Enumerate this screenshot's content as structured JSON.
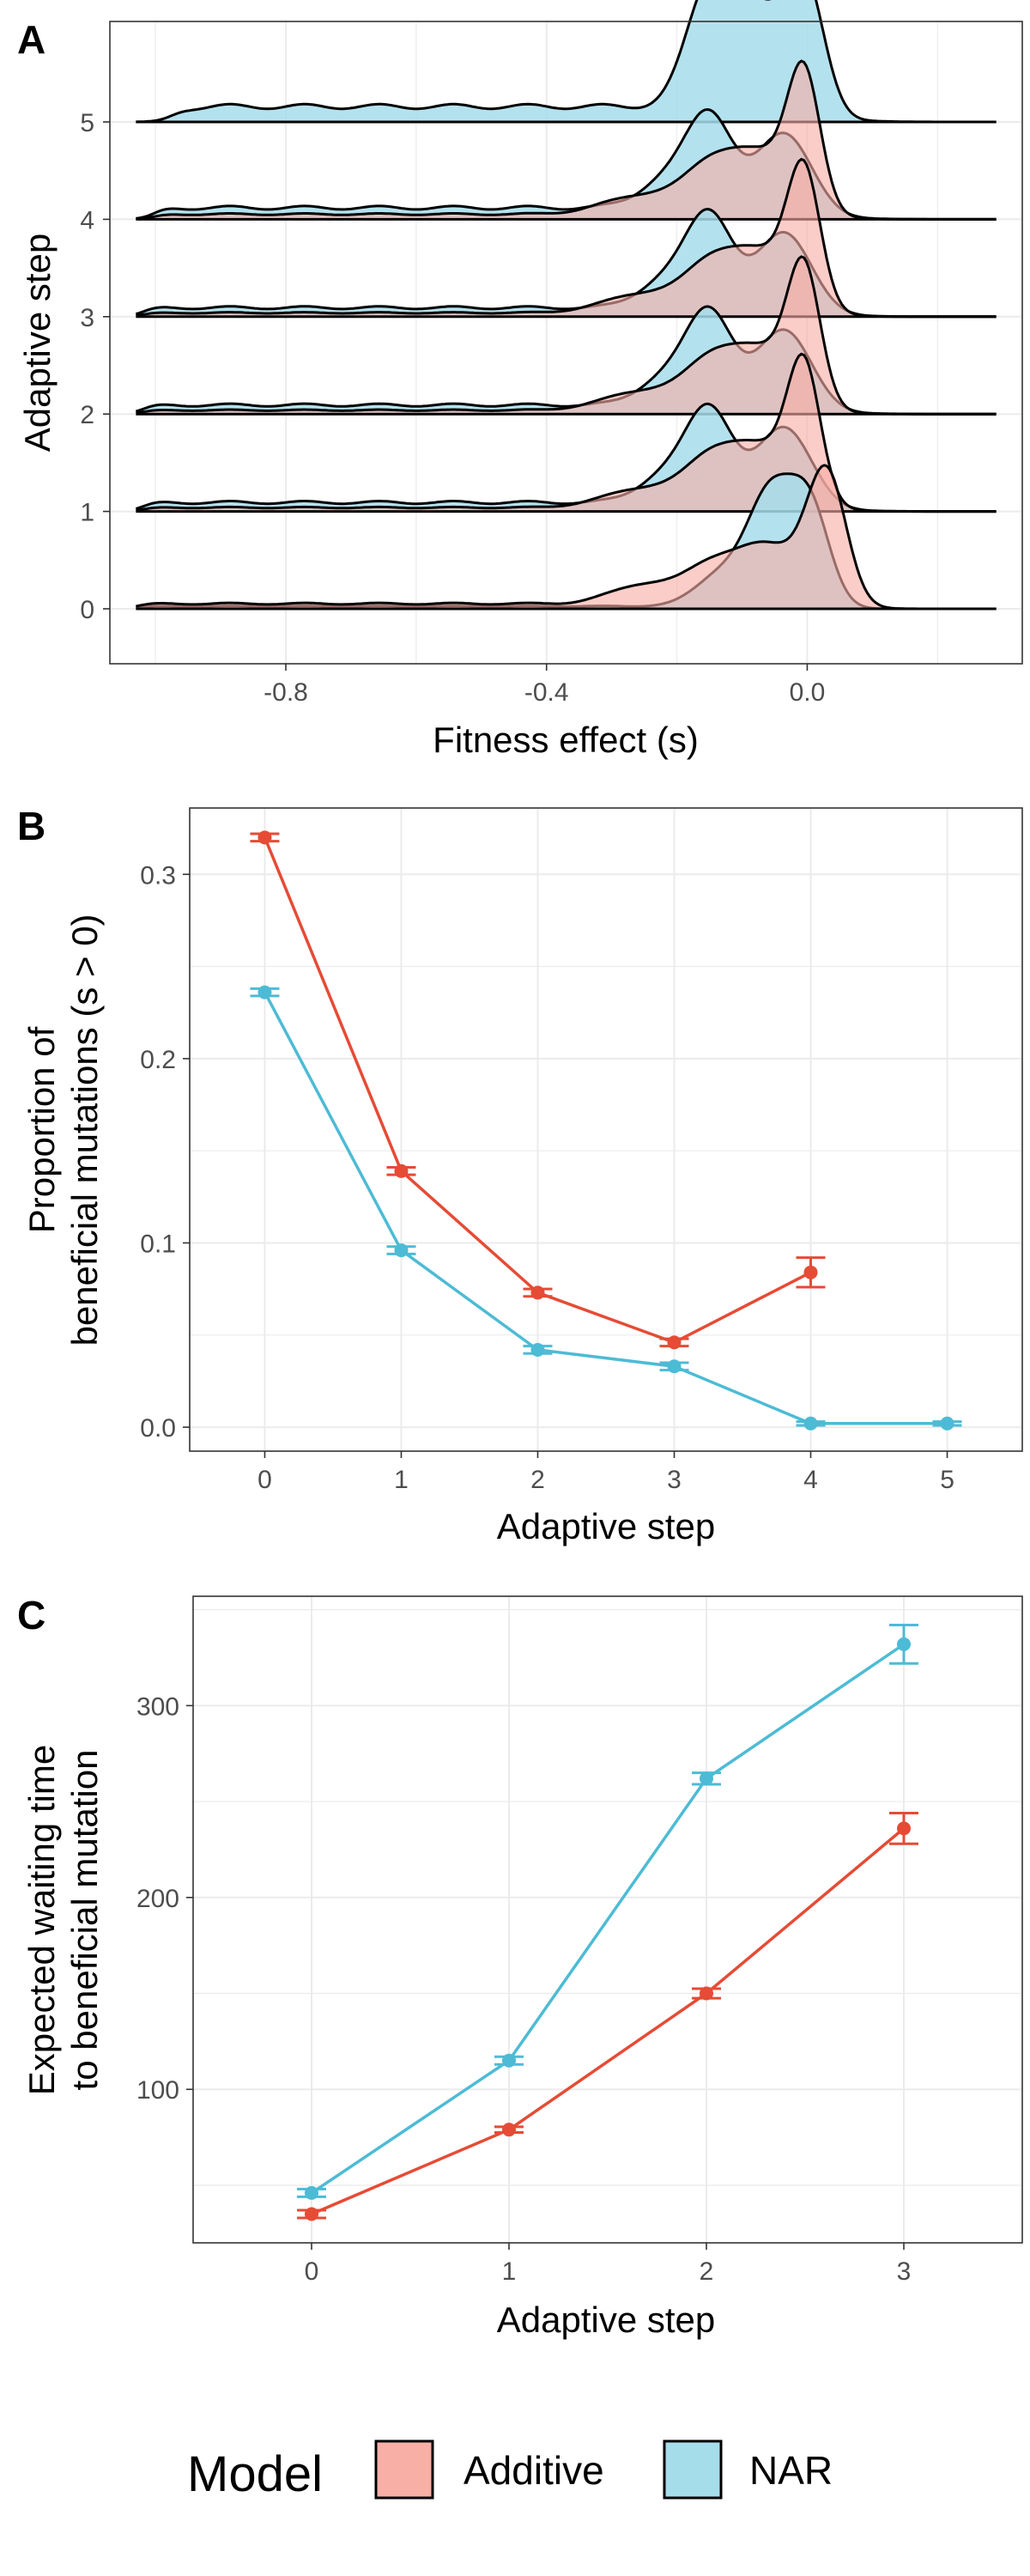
{
  "colors": {
    "additive": "#E64B35",
    "nar": "#4DBBD5",
    "additive_fill": "#F8AFA6",
    "nar_fill": "#A6DDEB",
    "overlap_fill": "#A3AFB1",
    "grid": "#EBEBEB",
    "border": "#333333"
  },
  "legend": {
    "title": "Model",
    "entries": [
      {
        "label": "Additive",
        "color": "#F8AFA6"
      },
      {
        "label": "NAR",
        "color": "#A6DDEB"
      }
    ]
  },
  "chart_data": [
    {
      "panel": "A",
      "type": "area",
      "subtype": "ridgeline density",
      "xlabel": "Fitness effect (s)",
      "ylabel": "Adaptive step",
      "x_ticks": [
        "-0.8",
        "-0.4",
        "0.0"
      ],
      "y_ticks": [
        "0",
        "1",
        "2",
        "3",
        "4",
        "5"
      ],
      "xlim": [
        -1.07,
        0.33
      ],
      "grid": true,
      "series": [
        {
          "name": "Additive",
          "ridges": {
            "0": {
              "peaks": [
                [
                  0.03,
                  1.0,
                  0.03
                ],
                [
                  -0.06,
                  0.45,
                  0.05
                ],
                [
                  -0.15,
                  0.25,
                  0.04
                ],
                [
                  -0.25,
                  0.15,
                  0.05
                ]
              ],
              "tail": 0.04,
              "tail_start": -1.03
            },
            "1": {
              "peaks": [
                [
                  -0.005,
                  1.0,
                  0.025
                ],
                [
                  -0.07,
                  0.45,
                  0.05
                ],
                [
                  -0.15,
                  0.3,
                  0.04
                ],
                [
                  -0.25,
                  0.15,
                  0.06
                ]
              ],
              "tail": 0.03,
              "tail_start": -1.02
            },
            "2": {
              "peaks": [
                [
                  -0.005,
                  1.0,
                  0.025
                ],
                [
                  -0.07,
                  0.45,
                  0.05
                ],
                [
                  -0.15,
                  0.3,
                  0.04
                ],
                [
                  -0.25,
                  0.15,
                  0.06
                ]
              ],
              "tail": 0.03,
              "tail_start": -1.02
            },
            "3": {
              "peaks": [
                [
                  -0.005,
                  1.0,
                  0.025
                ],
                [
                  -0.07,
                  0.45,
                  0.05
                ],
                [
                  -0.15,
                  0.3,
                  0.04
                ],
                [
                  -0.25,
                  0.15,
                  0.06
                ]
              ],
              "tail": 0.03,
              "tail_start": -1.02
            },
            "4": {
              "peaks": [
                [
                  -0.005,
                  1.0,
                  0.025
                ],
                [
                  -0.07,
                  0.45,
                  0.05
                ],
                [
                  -0.15,
                  0.3,
                  0.04
                ],
                [
                  -0.25,
                  0.15,
                  0.06
                ]
              ],
              "tail": 0.04,
              "tail_start": -1.0
            }
          }
        },
        {
          "name": "NAR",
          "ridges": {
            "0": {
              "peaks": [
                [
                  -0.055,
                  0.85,
                  0.035
                ],
                [
                  0.005,
                  0.72,
                  0.03
                ],
                [
                  -0.13,
                  0.25,
                  0.04
                ]
              ],
              "tail": 0.02,
              "tail_start": -1.03
            },
            "1": {
              "peaks": [
                [
                  -0.15,
                  0.72,
                  0.035
                ],
                [
                  -0.035,
                  0.6,
                  0.04
                ],
                [
                  -0.22,
                  0.2,
                  0.04
                ]
              ],
              "tail": 0.07,
              "tail_start": -1.02
            },
            "2": {
              "peaks": [
                [
                  -0.15,
                  0.72,
                  0.035
                ],
                [
                  -0.035,
                  0.6,
                  0.04
                ],
                [
                  -0.22,
                  0.2,
                  0.04
                ]
              ],
              "tail": 0.07,
              "tail_start": -1.02
            },
            "3": {
              "peaks": [
                [
                  -0.15,
                  0.72,
                  0.035
                ],
                [
                  -0.035,
                  0.6,
                  0.04
                ],
                [
                  -0.22,
                  0.2,
                  0.04
                ]
              ],
              "tail": 0.07,
              "tail_start": -1.02
            },
            "4": {
              "peaks": [
                [
                  -0.15,
                  0.72,
                  0.035
                ],
                [
                  -0.035,
                  0.6,
                  0.04
                ],
                [
                  -0.22,
                  0.2,
                  0.04
                ]
              ],
              "tail": 0.09,
              "tail_start": -1.0
            },
            "5": {
              "peaks": [
                [
                  -0.15,
                  0.9,
                  0.035
                ],
                [
                  -0.005,
                  1.0,
                  0.03
                ],
                [
                  -0.08,
                  0.7,
                  0.04
                ]
              ],
              "tail": 0.12,
              "tail_start": -0.97
            }
          }
        }
      ]
    },
    {
      "panel": "B",
      "type": "line",
      "xlabel": "Adaptive step",
      "ylabel": [
        "Proportion of",
        "beneficial mutations (s > 0)"
      ],
      "x_ticks": [
        "0",
        "1",
        "2",
        "3",
        "4",
        "5"
      ],
      "y_ticks": [
        "0.0",
        "0.1",
        "0.2",
        "0.3"
      ],
      "xlim": [
        -0.55,
        5.55
      ],
      "ylim": [
        -0.013,
        0.336
      ],
      "grid": true,
      "series": [
        {
          "name": "Additive",
          "x": [
            0,
            1,
            2,
            3,
            4
          ],
          "y": [
            0.32,
            0.139,
            0.073,
            0.046,
            0.084
          ],
          "err": [
            0.002,
            0.002,
            0.002,
            0.002,
            0.008
          ]
        },
        {
          "name": "NAR",
          "x": [
            0,
            1,
            2,
            3,
            4,
            5
          ],
          "y": [
            0.236,
            0.096,
            0.042,
            0.033,
            0.002,
            0.002
          ],
          "err": [
            0.002,
            0.002,
            0.002,
            0.002,
            0.001,
            0.001
          ]
        }
      ]
    },
    {
      "panel": "C",
      "type": "line",
      "xlabel": "Adaptive step",
      "ylabel": [
        "Expected waiting time",
        "to beneficial mutation"
      ],
      "x_ticks": [
        "0",
        "1",
        "2",
        "3"
      ],
      "y_ticks": [
        "100",
        "200",
        "300"
      ],
      "xlim": [
        -0.6,
        3.6
      ],
      "ylim": [
        20,
        357
      ],
      "grid": true,
      "series": [
        {
          "name": "Additive",
          "x": [
            0,
            1,
            2,
            3
          ],
          "y": [
            35,
            79,
            150,
            236
          ],
          "err": [
            2,
            1.5,
            2.5,
            8
          ]
        },
        {
          "name": "NAR",
          "x": [
            0,
            1,
            2,
            3
          ],
          "y": [
            46,
            115,
            262,
            332
          ],
          "err": [
            2,
            2,
            3,
            10
          ]
        }
      ]
    }
  ]
}
